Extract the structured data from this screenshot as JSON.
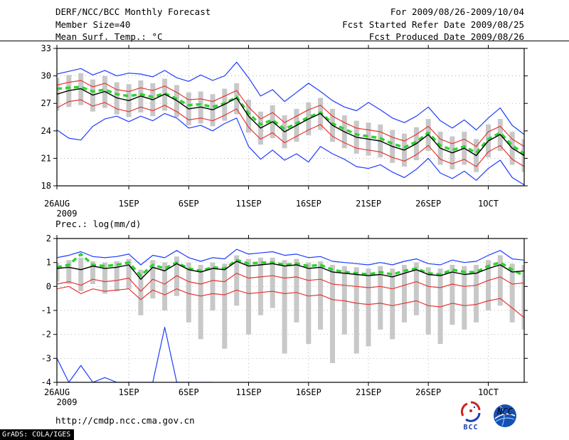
{
  "header": {
    "title": "DERF/NCC/BCC Monthly Forecast",
    "member_size": "Member Size=40",
    "for_range": "For 2009/08/26-2009/10/04",
    "fcst_started": "Fcst Started Refer Date 2009/08/25",
    "fcst_produced": "Fcst Produced Date 2009/08/26"
  },
  "footer": {
    "url": "http://cmdp.ncc.cma.gov.cn",
    "grads_credit": "GrADS: COLA/IGES",
    "bcc_label": "BCC",
    "ncc_label": "NCC"
  },
  "colors": {
    "max_min_line": "#1e3cff",
    "std_line": "#e83535",
    "mean_line": "#000000",
    "obs_dashed_line": "#2fd42f",
    "spread_bar": "#c8c8c8"
  },
  "chart_data": [
    {
      "type": "line",
      "title": "Mean Surf. Temp.: °C",
      "xlabel": "",
      "ylabel": "",
      "x_tick_labels": [
        "26AUG",
        "1SEP",
        "6SEP",
        "11SEP",
        "16SEP",
        "21SEP",
        "26SEP",
        "1OCT"
      ],
      "x_tick_positions": [
        0,
        6,
        11,
        16,
        21,
        26,
        31,
        36
      ],
      "x_range": [
        0,
        39
      ],
      "year_label": "2009",
      "ylim": [
        18,
        33
      ],
      "y_ticks": [
        18,
        21,
        24,
        27,
        30,
        33
      ],
      "grid": "dotted",
      "bars": {
        "name": "ensemble-spread",
        "color": "#c8c8c8",
        "high": [
          29.8,
          30.1,
          30.3,
          29.6,
          30.0,
          29.3,
          29.1,
          29.5,
          29.2,
          29.7,
          29.0,
          28.2,
          28.3,
          28.0,
          28.6,
          29.2,
          27.4,
          26.1,
          26.8,
          25.7,
          26.4,
          27.1,
          27.6,
          26.4,
          25.7,
          25.1,
          24.9,
          24.7,
          24.1,
          23.7,
          24.4,
          25.3,
          23.9,
          23.4,
          23.9,
          23.1,
          24.7,
          25.3,
          23.9,
          23.1
        ],
        "low": [
          26.2,
          26.6,
          26.8,
          26.1,
          26.5,
          25.8,
          25.5,
          26.0,
          25.6,
          26.2,
          25.5,
          24.6,
          24.8,
          24.5,
          25.1,
          25.8,
          23.8,
          22.5,
          23.2,
          22.1,
          22.8,
          23.5,
          24.1,
          22.8,
          22.1,
          21.5,
          21.3,
          21.1,
          20.5,
          20.1,
          20.8,
          21.8,
          20.3,
          19.8,
          20.3,
          19.5,
          21.1,
          21.8,
          20.3,
          19.5
        ]
      },
      "series": [
        {
          "name": "ensemble-max",
          "color": "#1e3cff",
          "width": 1.2,
          "values": [
            30.2,
            30.5,
            30.8,
            30.1,
            30.6,
            30.0,
            30.3,
            30.2,
            29.9,
            30.6,
            29.8,
            29.4,
            30.1,
            29.5,
            30.0,
            31.5,
            29.8,
            27.8,
            28.5,
            27.2,
            28.2,
            29.2,
            28.3,
            27.3,
            26.6,
            26.2,
            27.1,
            26.3,
            25.4,
            24.9,
            25.6,
            26.6,
            25.1,
            24.3,
            25.2,
            24.1,
            25.4,
            26.5,
            24.6,
            23.6
          ]
        },
        {
          "name": "ensemble-min",
          "color": "#1e3cff",
          "width": 1.2,
          "values": [
            24.1,
            23.2,
            23.0,
            24.5,
            25.3,
            25.6,
            25.0,
            25.6,
            25.1,
            25.9,
            25.4,
            24.3,
            24.6,
            24.0,
            24.8,
            25.4,
            22.3,
            20.9,
            21.9,
            20.8,
            21.5,
            20.6,
            22.3,
            21.5,
            20.9,
            20.1,
            19.9,
            20.3,
            19.5,
            18.9,
            19.8,
            21.0,
            19.4,
            18.8,
            19.6,
            18.6,
            19.9,
            20.8,
            18.9,
            18.1
          ]
        },
        {
          "name": "plus-one-std",
          "color": "#e83535",
          "width": 1.2,
          "values": [
            29.0,
            29.3,
            29.5,
            28.8,
            29.2,
            28.5,
            28.3,
            28.7,
            28.4,
            28.9,
            28.2,
            27.4,
            27.5,
            27.2,
            27.8,
            28.4,
            26.6,
            25.3,
            26.0,
            24.9,
            25.6,
            26.3,
            26.8,
            25.6,
            24.9,
            24.3,
            24.1,
            23.9,
            23.3,
            22.9,
            23.6,
            24.5,
            23.1,
            22.6,
            23.1,
            22.3,
            23.9,
            24.5,
            23.1,
            22.3
          ]
        },
        {
          "name": "minus-one-std",
          "color": "#e83535",
          "width": 1.2,
          "values": [
            26.5,
            27.2,
            27.4,
            26.7,
            27.1,
            26.4,
            26.1,
            26.6,
            26.2,
            26.8,
            26.1,
            25.2,
            25.4,
            25.1,
            25.7,
            26.4,
            24.4,
            23.1,
            23.8,
            22.7,
            23.4,
            24.1,
            24.7,
            23.4,
            22.7,
            22.1,
            21.9,
            21.7,
            21.1,
            20.7,
            21.4,
            22.4,
            20.9,
            20.4,
            20.9,
            20.1,
            21.7,
            22.4,
            20.9,
            20.1
          ]
        },
        {
          "name": "reference-dashed",
          "color": "#2fd42f",
          "width": 3.5,
          "dash": "7,5",
          "values": [
            28.6,
            28.7,
            28.8,
            28.3,
            28.5,
            28.0,
            27.8,
            28.0,
            27.7,
            28.1,
            27.5,
            26.8,
            26.9,
            26.6,
            27.0,
            27.7,
            25.9,
            24.7,
            25.2,
            24.2,
            24.8,
            25.5,
            26.0,
            24.8,
            24.2,
            23.6,
            23.4,
            23.2,
            22.6,
            22.2,
            22.8,
            23.8,
            22.4,
            21.9,
            22.3,
            21.6,
            23.1,
            23.8,
            22.4,
            21.5
          ]
        },
        {
          "name": "ensemble-mean",
          "color": "#000000",
          "width": 1.4,
          "values": [
            28.0,
            28.4,
            28.6,
            27.9,
            28.3,
            27.6,
            27.3,
            27.8,
            27.4,
            28.0,
            27.3,
            26.4,
            26.6,
            26.3,
            26.9,
            27.6,
            25.6,
            24.3,
            25.0,
            23.9,
            24.6,
            25.3,
            25.9,
            24.6,
            23.9,
            23.3,
            23.1,
            22.9,
            22.3,
            21.9,
            22.6,
            23.6,
            22.1,
            21.6,
            22.1,
            21.3,
            22.9,
            23.6,
            22.1,
            21.3
          ]
        }
      ]
    },
    {
      "type": "line",
      "title": "Prec.: log(mm/d)",
      "xlabel": "",
      "ylabel": "",
      "x_tick_labels": [
        "26AUG",
        "1SEP",
        "6SEP",
        "11SEP",
        "16SEP",
        "21SEP",
        "26SEP",
        "1OCT"
      ],
      "x_tick_positions": [
        0,
        6,
        11,
        16,
        21,
        26,
        31,
        36
      ],
      "x_range": [
        0,
        39
      ],
      "year_label": "2009",
      "ylim": [
        -4,
        2
      ],
      "y_ticks": [
        -4,
        -3,
        -2,
        -1,
        0,
        1,
        2
      ],
      "grid": "dotted",
      "bars": {
        "name": "ensemble-spread",
        "color": "#c8c8c8",
        "high": [
          1.0,
          1.1,
          1.2,
          1.05,
          1.0,
          1.05,
          1.15,
          0.7,
          1.1,
          1.0,
          1.25,
          1.0,
          0.9,
          1.0,
          0.95,
          1.3,
          1.15,
          1.2,
          1.2,
          1.1,
          1.15,
          1.0,
          1.05,
          0.9,
          0.85,
          0.8,
          0.75,
          0.85,
          0.75,
          0.9,
          1.0,
          0.8,
          0.75,
          0.9,
          0.85,
          0.9,
          1.1,
          1.3,
          0.95,
          0.9
        ],
        "low": [
          0.2,
          0.1,
          -0.2,
          0.1,
          -0.3,
          -0.2,
          -0.1,
          -1.2,
          -0.5,
          -1.0,
          -0.4,
          -1.5,
          -2.2,
          -1.0,
          -2.6,
          -0.8,
          -2.0,
          -1.2,
          -0.9,
          -2.8,
          -1.5,
          -2.4,
          -1.8,
          -3.2,
          -2.0,
          -2.8,
          -2.5,
          -1.8,
          -2.2,
          -1.5,
          -1.2,
          -2.0,
          -2.4,
          -1.6,
          -1.8,
          -1.5,
          -1.0,
          -0.8,
          -1.5,
          -1.8
        ]
      },
      "series": [
        {
          "name": "ensemble-max",
          "color": "#1e3cff",
          "width": 1.2,
          "values": [
            1.2,
            1.3,
            1.45,
            1.25,
            1.2,
            1.25,
            1.35,
            0.9,
            1.3,
            1.2,
            1.5,
            1.2,
            1.05,
            1.2,
            1.15,
            1.55,
            1.35,
            1.4,
            1.45,
            1.3,
            1.35,
            1.2,
            1.25,
            1.05,
            1.0,
            0.95,
            0.9,
            1.0,
            0.9,
            1.05,
            1.15,
            0.95,
            0.9,
            1.1,
            1.0,
            1.05,
            1.3,
            1.5,
            1.15,
            1.1
          ]
        },
        {
          "name": "ensemble-min",
          "color": "#1e3cff",
          "width": 1.2,
          "values": [
            -3.0,
            -4.0,
            -3.3,
            -4.0,
            -3.8,
            -4.0,
            -4.0,
            -4.0,
            -4.0,
            -1.7,
            -4.0,
            -4.0,
            -4.0,
            -4.0,
            -4.2,
            -4.5,
            -4.5,
            -4.5,
            -4.5,
            -4.5,
            -4.5,
            -4.5,
            -4.5,
            -4.5,
            -4.5,
            -4.5,
            -4.5,
            -4.5,
            -4.5,
            -4.5,
            -4.5,
            -4.5,
            -4.5,
            -4.5,
            -4.5,
            -4.5,
            -4.5,
            -4.5,
            -4.5,
            -4.5
          ]
        },
        {
          "name": "plus-one-std",
          "color": "#e83535",
          "width": 1.2,
          "values": [
            0.1,
            0.2,
            0.05,
            0.3,
            0.2,
            0.25,
            0.35,
            -0.2,
            0.3,
            0.1,
            0.45,
            0.2,
            0.1,
            0.25,
            0.2,
            0.55,
            0.35,
            0.4,
            0.45,
            0.35,
            0.4,
            0.25,
            0.3,
            0.1,
            0.05,
            0.0,
            -0.05,
            0.0,
            -0.1,
            0.05,
            0.2,
            0.0,
            -0.05,
            0.1,
            0.0,
            0.05,
            0.25,
            0.4,
            0.1,
            0.15
          ]
        },
        {
          "name": "minus-one-std",
          "color": "#e83535",
          "width": 1.2,
          "values": [
            -0.1,
            0.0,
            -0.3,
            -0.1,
            -0.2,
            -0.15,
            -0.1,
            -0.55,
            -0.15,
            -0.35,
            -0.1,
            -0.3,
            -0.4,
            -0.3,
            -0.35,
            -0.15,
            -0.3,
            -0.25,
            -0.2,
            -0.3,
            -0.25,
            -0.4,
            -0.35,
            -0.55,
            -0.6,
            -0.7,
            -0.75,
            -0.7,
            -0.8,
            -0.7,
            -0.6,
            -0.8,
            -0.85,
            -0.7,
            -0.8,
            -0.75,
            -0.6,
            -0.5,
            -0.9,
            -1.3
          ]
        },
        {
          "name": "reference-dashed",
          "color": "#2fd42f",
          "width": 3.5,
          "dash": "7,5",
          "values": [
            0.8,
            0.9,
            1.35,
            0.9,
            0.85,
            0.9,
            1.0,
            0.45,
            0.9,
            0.75,
            1.0,
            0.75,
            0.65,
            0.8,
            0.75,
            1.1,
            0.95,
            1.0,
            1.0,
            0.9,
            0.95,
            0.85,
            0.9,
            0.7,
            0.6,
            0.55,
            0.5,
            0.6,
            0.5,
            0.65,
            0.75,
            0.55,
            0.5,
            0.7,
            0.6,
            0.6,
            0.85,
            1.0,
            0.7,
            0.45
          ]
        },
        {
          "name": "ensemble-mean",
          "color": "#000000",
          "width": 1.4,
          "values": [
            0.75,
            0.8,
            0.7,
            0.85,
            0.75,
            0.8,
            0.9,
            0.3,
            0.8,
            0.65,
            0.95,
            0.7,
            0.6,
            0.75,
            0.7,
            1.05,
            0.85,
            0.9,
            0.95,
            0.85,
            0.9,
            0.75,
            0.8,
            0.6,
            0.55,
            0.5,
            0.45,
            0.5,
            0.4,
            0.55,
            0.7,
            0.5,
            0.45,
            0.6,
            0.5,
            0.55,
            0.75,
            0.9,
            0.6,
            0.65
          ]
        }
      ]
    }
  ]
}
